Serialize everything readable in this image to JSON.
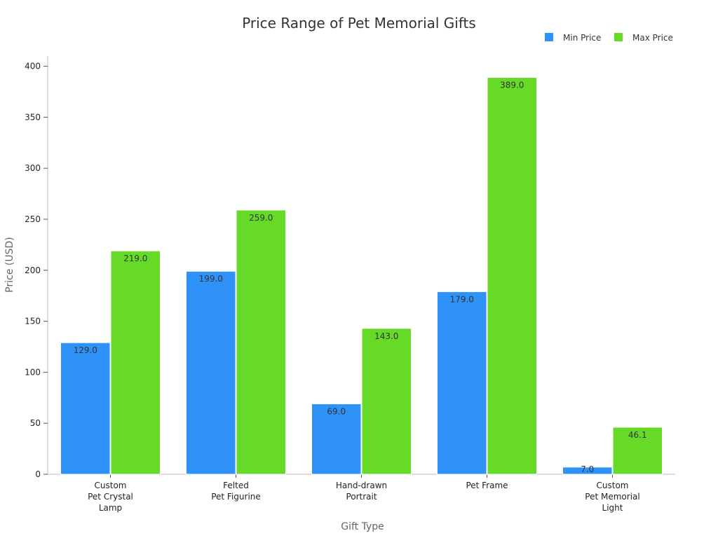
{
  "chart_data": {
    "type": "bar",
    "title": "Price Range of Pet Memorial Gifts",
    "xlabel": "Gift Type",
    "ylabel": "Price (USD)",
    "categories": [
      "Custom\nPet Crystal\nLamp",
      "Felted\nPet Figurine",
      "Hand-drawn\nPortrait",
      "Pet Frame",
      "Custom\nPet Memorial\nLight"
    ],
    "series": [
      {
        "name": "Min Price",
        "color": "#2f92f9",
        "values": [
          129.0,
          199.0,
          69.0,
          179.0,
          7.0
        ],
        "labels": [
          "129.0",
          "199.0",
          "69.0",
          "179.0",
          "7.0"
        ]
      },
      {
        "name": "Max Price",
        "color": "#66da26",
        "values": [
          219.0,
          259.0,
          143.0,
          389.0,
          46.1
        ],
        "labels": [
          "219.0",
          "259.0",
          "143.0",
          "389.0",
          "46.1"
        ]
      }
    ],
    "ylim": [
      0,
      410
    ],
    "yticks": [
      0,
      50,
      100,
      150,
      200,
      250,
      300,
      350,
      400
    ],
    "grid": false,
    "legend_position": "top-right"
  }
}
